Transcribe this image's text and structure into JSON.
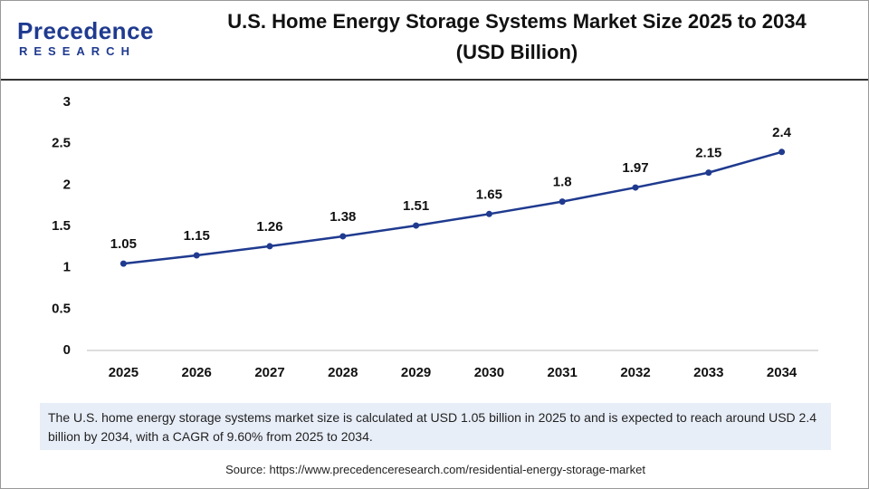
{
  "header": {
    "logo_name": "Precedence",
    "logo_sub": "RESEARCH",
    "title_lines": [
      "U.S. Home Energy Storage Systems Market Size 2025 to 2034",
      "(USD Billion)"
    ]
  },
  "chart_data": {
    "type": "line",
    "categories": [
      "2025",
      "2026",
      "2027",
      "2028",
      "2029",
      "2030",
      "2031",
      "2032",
      "2033",
      "2034"
    ],
    "values": [
      1.05,
      1.15,
      1.26,
      1.38,
      1.51,
      1.65,
      1.8,
      1.97,
      2.15,
      2.4
    ],
    "color": "#1f3a8f",
    "ylim": [
      0,
      3
    ],
    "yticks": [
      0,
      0.5,
      1,
      1.5,
      2,
      2.5,
      3
    ],
    "grid": false
  },
  "note": "The U.S. home energy storage systems market size is calculated at USD 1.05 billion in 2025 to and is expected to reach around USD 2.4 billion by 2034, with a CAGR of 9.60% from 2025 to 2034.",
  "source": "Source: https://www.precedenceresearch.com/residential-energy-storage-market"
}
